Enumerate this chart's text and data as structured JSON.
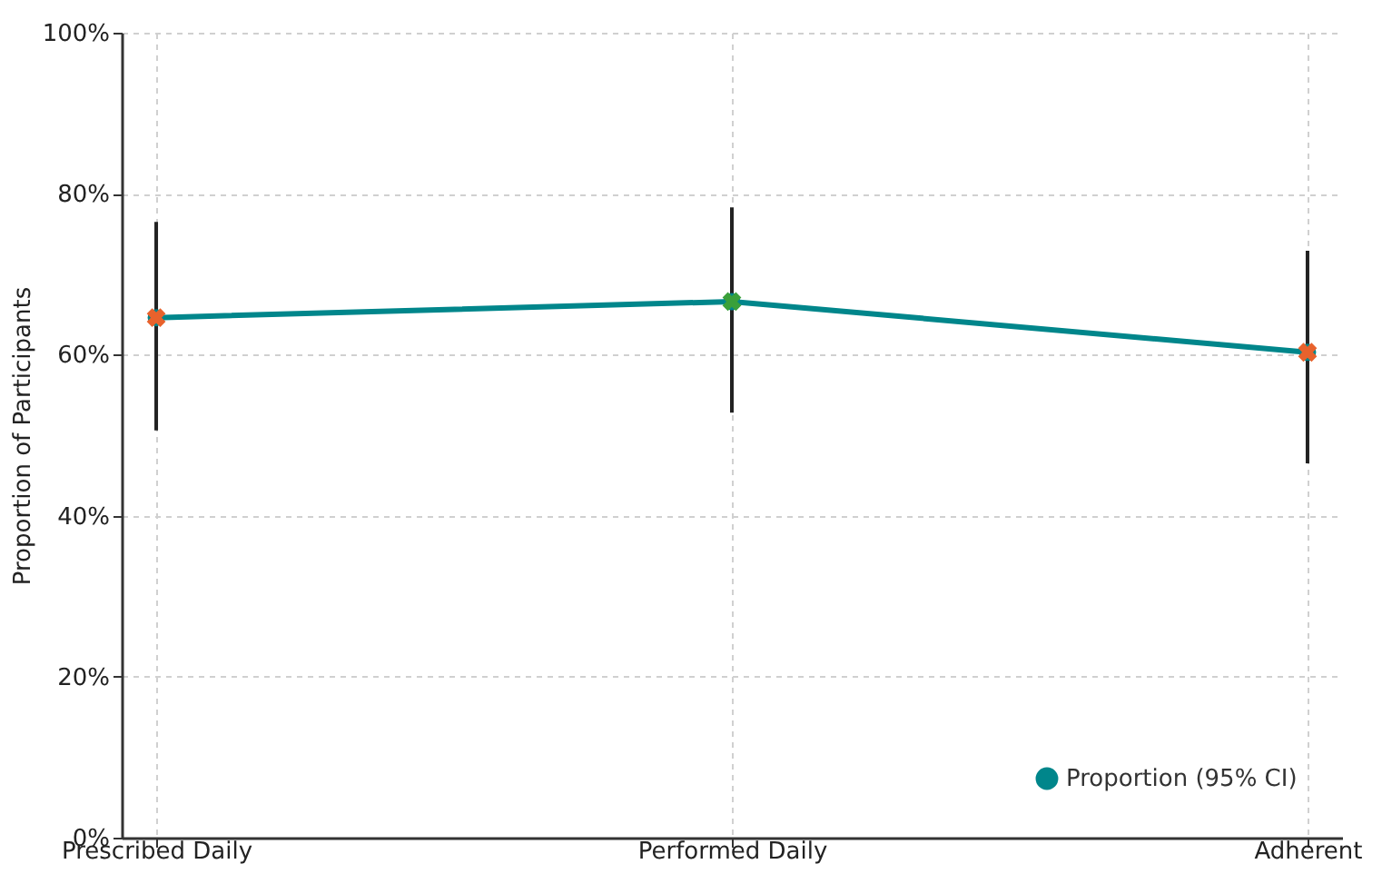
{
  "chart_data": {
    "type": "line",
    "ylabel": "Proportion of Participants",
    "categories": [
      "Prescribed Daily",
      "Performed Daily",
      "Adherent"
    ],
    "series": [
      {
        "name": "Proportion (95% CI)",
        "color": "#00868b",
        "marker": "circle",
        "values": [
          64.6,
          66.6,
          60.3
        ],
        "errors": [
          [
            50.6,
            76.5
          ],
          [
            52.8,
            78.3
          ],
          [
            46.5,
            72.9
          ]
        ]
      },
      {
        "type": "scatter",
        "marker": "cross",
        "x": [
          "Prescribed Daily",
          "Performed Daily",
          "Adherent"
        ],
        "colors": [
          "#e8622c",
          "#3aa03a",
          "#e8622c"
        ],
        "values": [
          64.6,
          66.6,
          60.3
        ]
      }
    ],
    "ylim": [
      0,
      100
    ],
    "yticks": [
      {
        "value": 0,
        "label": "0%"
      },
      {
        "value": 20,
        "label": "20%"
      },
      {
        "value": 40,
        "label": "40%"
      },
      {
        "value": 60,
        "label": "60%"
      },
      {
        "value": 80,
        "label": "80%"
      },
      {
        "value": 100,
        "label": "100%"
      }
    ],
    "grid": true,
    "legend": "bottom right"
  }
}
